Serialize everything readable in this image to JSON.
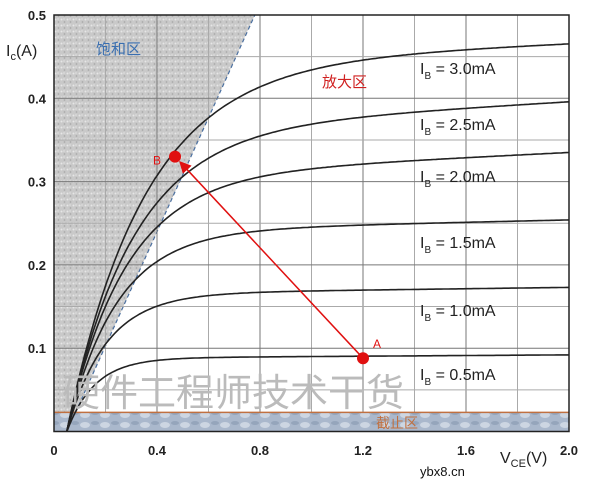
{
  "chart_data": {
    "type": "line",
    "xlabel_main": "V",
    "xlabel_sub": "CE",
    "xlabel_unit": "(V)",
    "ylabel_main": "I",
    "ylabel_sub": "c",
    "ylabel_unit": "(A)",
    "xlim": [
      0,
      2.0
    ],
    "ylim": [
      0,
      0.5
    ],
    "x_ticks": [
      "0",
      "0.4",
      "0.8",
      "1.2",
      "1.6",
      "2.0"
    ],
    "x_tick_values": [
      0,
      0.4,
      0.8,
      1.2,
      1.6,
      2.0
    ],
    "y_ticks": [
      "0.1",
      "0.2",
      "0.3",
      "0.4",
      "0.5"
    ],
    "y_tick_values": [
      0.1,
      0.2,
      0.3,
      0.4,
      0.5
    ],
    "grid": true,
    "series": [
      {
        "name": "I_B = 0.5mA",
        "label_main": "I",
        "label_sub": "B",
        "label_rest": " = 0.5mA",
        "sat": 0.088,
        "slope": 0.002
      },
      {
        "name": "I_B = 1.0mA",
        "label_main": "I",
        "label_sub": "B",
        "label_rest": " = 1.0mA",
        "sat": 0.165,
        "slope": 0.004
      },
      {
        "name": "I_B = 1.5mA",
        "label_main": "I",
        "label_sub": "B",
        "label_rest": " = 1.5mA",
        "sat": 0.24,
        "slope": 0.007
      },
      {
        "name": "I_B = 2.0mA",
        "label_main": "I",
        "label_sub": "B",
        "label_rest": " = 2.0mA",
        "sat": 0.305,
        "slope": 0.015
      },
      {
        "name": "I_B = 2.5mA",
        "label_main": "I",
        "label_sub": "B",
        "label_rest": " = 2.5mA",
        "sat": 0.36,
        "slope": 0.018
      },
      {
        "name": "I_B = 3.0mA",
        "label_main": "I",
        "label_sub": "B",
        "label_rest": " = 3.0mA",
        "sat": 0.44,
        "slope": 0.013
      }
    ],
    "points": [
      {
        "label": "A",
        "x": 1.2,
        "y": 0.088
      },
      {
        "label": "B",
        "x": 0.47,
        "y": 0.33
      }
    ],
    "arrow": {
      "from": "A",
      "to": "B",
      "color": "#e01010"
    },
    "regions": {
      "saturation": {
        "label": "饱和区",
        "boundary": [
          [
            0.05,
            0
          ],
          [
            0.78,
            0.5
          ]
        ],
        "color": "#3a6fb0"
      },
      "active": {
        "label": "放大区",
        "color": "#d02020"
      },
      "cutoff": {
        "label": "截止区",
        "ymax": 0.023,
        "color": "#c07040"
      }
    },
    "watermark": "硬件工程师技术干货",
    "site_mark": "ybx8.cn"
  }
}
